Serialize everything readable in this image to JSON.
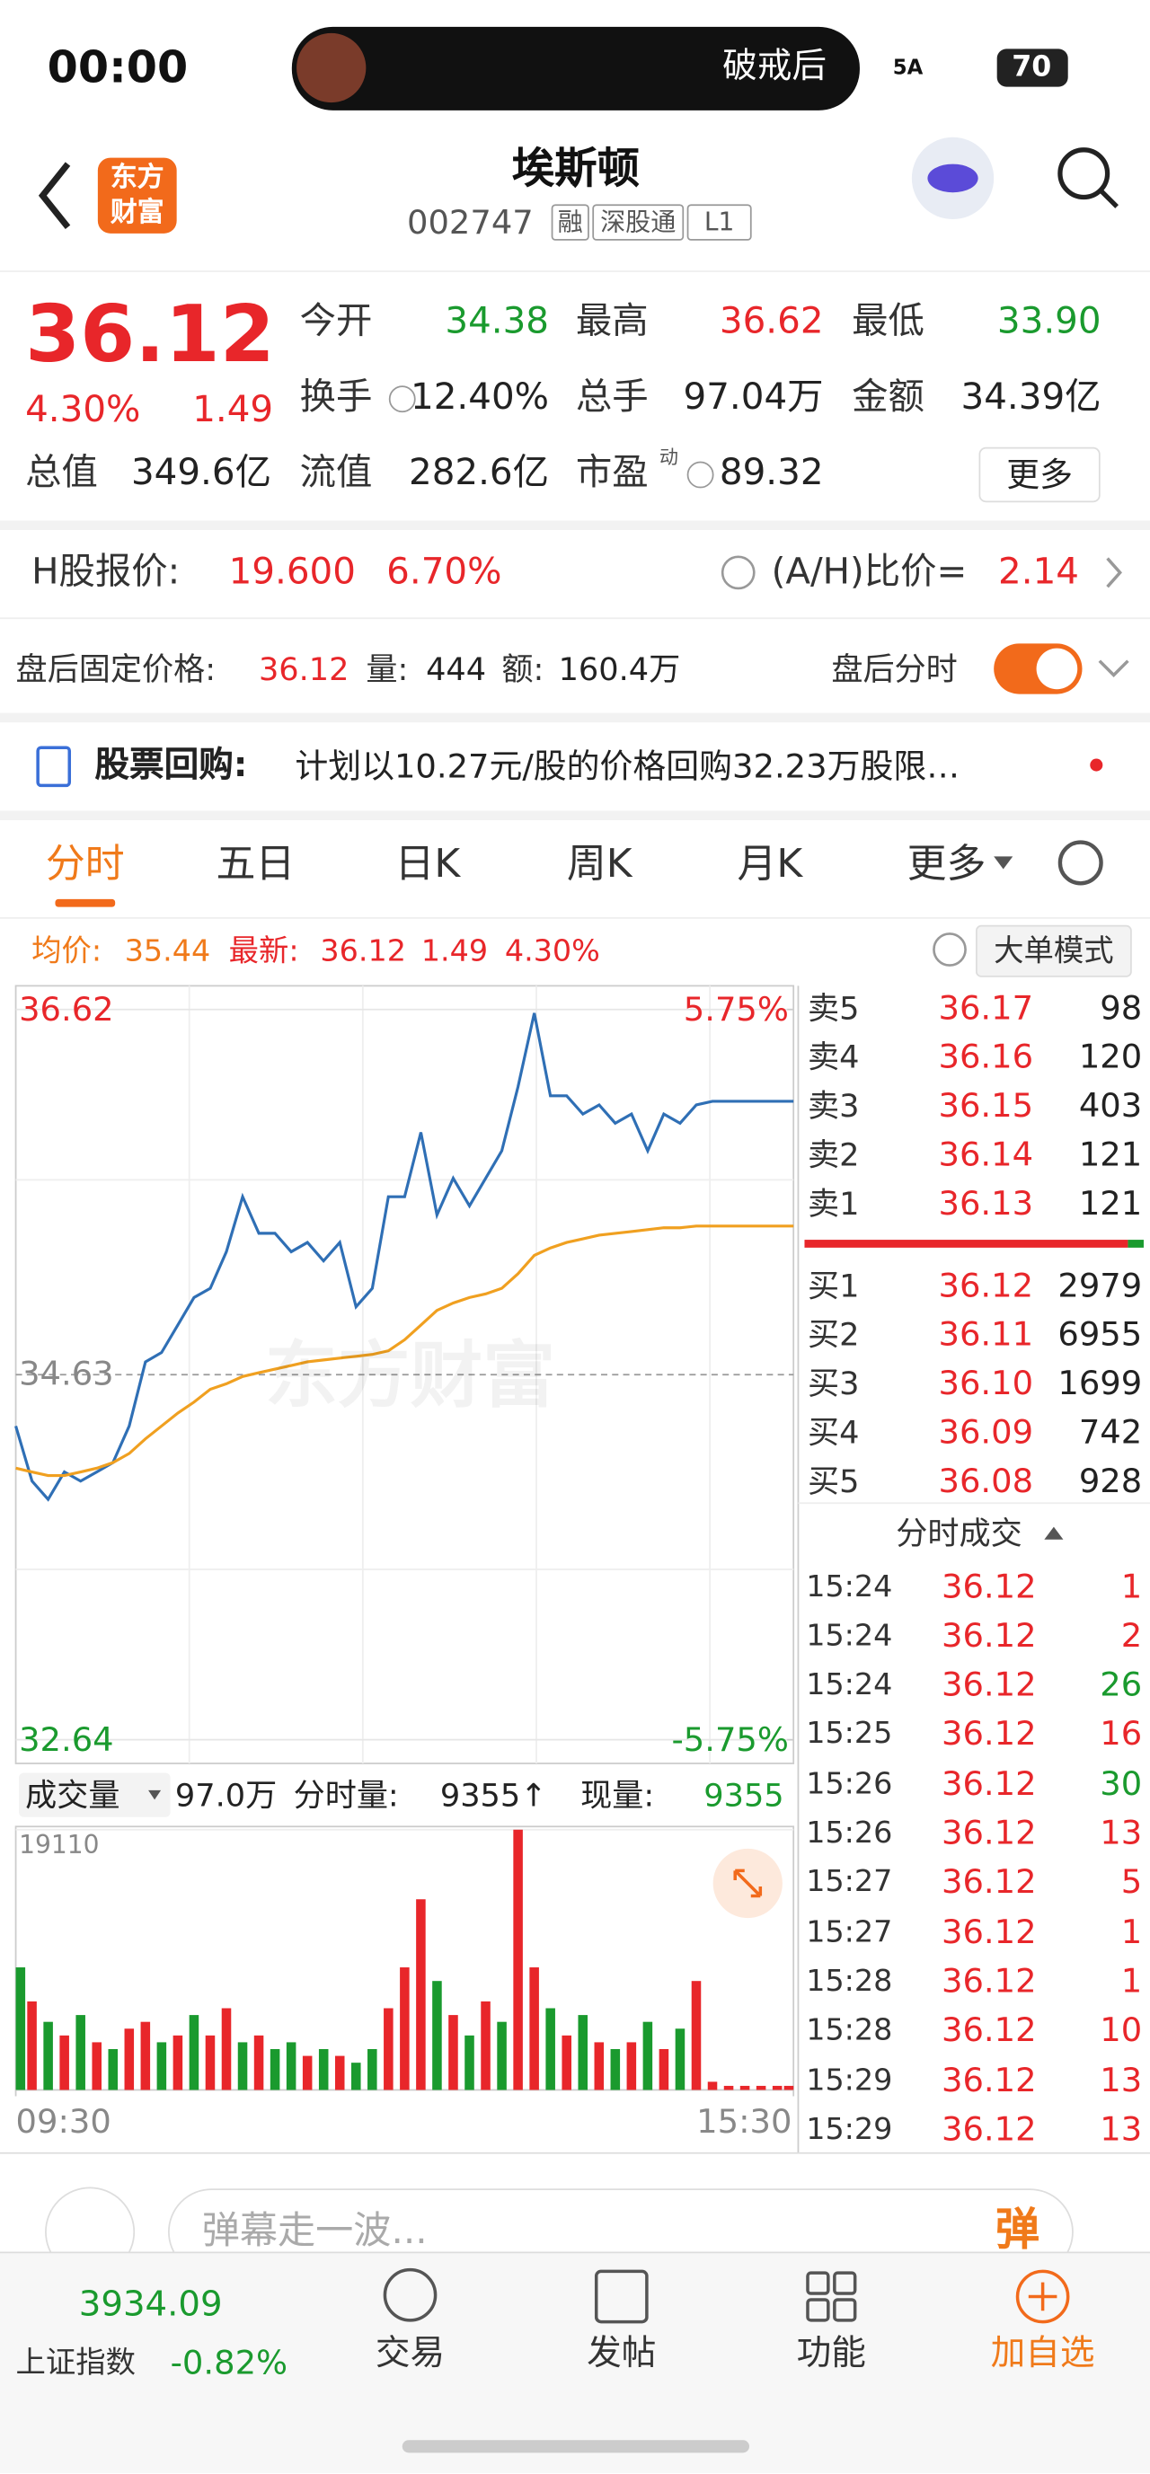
{
  "status_bar": {
    "time": "00:00",
    "notice": "破戒后",
    "network": "5A",
    "battery": "70"
  },
  "header": {
    "logo": [
      "东方",
      "财富"
    ],
    "title": "埃斯顿",
    "code": "002747",
    "tags": [
      "融",
      "深股通",
      "L1"
    ]
  },
  "quote": {
    "price": "36.12",
    "change_pct": "4.30%",
    "change": "1.49",
    "fields": [
      {
        "label": "今开",
        "value": "34.38"
      },
      {
        "label": "最高",
        "value": "36.62"
      },
      {
        "label": "最低",
        "value": "33.90"
      },
      {
        "label": "换手",
        "value": "12.40%"
      },
      {
        "label": "总手",
        "value": "97.04万"
      },
      {
        "label": "金额",
        "value": "34.39亿"
      },
      {
        "label": "总值",
        "value": "349.6亿"
      },
      {
        "label": "流值",
        "value": "282.6亿"
      },
      {
        "label": "市盈",
        "value": "89.32"
      }
    ],
    "pe_note": "动",
    "more": "更多"
  },
  "h_share": {
    "label": "H股报价:",
    "price": "19.600",
    "change_pct": "6.70%",
    "ratio_label": "(A/H)比价=",
    "ratio": "2.14"
  },
  "after_hours": {
    "label": "盘后固定价格:",
    "price": "36.12",
    "vol_label": "量:",
    "vol": "444",
    "amt_label": "额:",
    "amt": "160.4万",
    "toggle_label": "盘后分时"
  },
  "notice": {
    "label": "股票回购:",
    "text": "计划以10.27元/股的价格回购32.23万股限…"
  },
  "tabs": [
    "分时",
    "五日",
    "日K",
    "周K",
    "月K",
    "更多"
  ],
  "info": {
    "avg_label": "均价:",
    "avg": "35.44",
    "last_label": "最新:",
    "last": "36.12",
    "change": "1.49",
    "change_pct": "4.30%",
    "mode": "大单模式"
  },
  "watermark": "东方财富",
  "chart_data": [
    {
      "type": "line",
      "x": [
        0,
        5,
        10,
        15,
        20,
        25,
        30,
        35,
        40,
        45,
        50,
        55,
        60,
        65,
        70,
        75,
        80,
        85,
        90,
        95,
        100,
        105,
        110,
        115,
        120,
        125,
        130,
        135,
        140,
        145,
        150,
        155,
        160,
        165,
        170,
        175,
        180,
        185,
        190,
        195,
        200,
        205,
        210,
        215,
        220,
        225,
        230,
        235,
        240
      ],
      "xlim": [
        0,
        240
      ],
      "ylim": [
        32.64,
        36.62
      ],
      "yticks": [
        36.62,
        34.63,
        32.64
      ],
      "y2lim": [
        -5.75,
        5.75
      ],
      "y2ticks": [
        {
          "value": 5.75,
          "label": "5.75%"
        },
        {
          "value": -5.75,
          "label": "-5.75%"
        }
      ],
      "series": [
        {
          "color": "#2f6fb5",
          "values": [
            34.35,
            34.05,
            33.95,
            34.1,
            34.05,
            34.1,
            34.15,
            34.35,
            34.7,
            34.75,
            34.9,
            35.05,
            35.1,
            35.3,
            35.6,
            35.4,
            35.4,
            35.3,
            35.35,
            35.25,
            35.35,
            35.0,
            35.1,
            35.6,
            35.6,
            35.95,
            35.5,
            35.7,
            35.55,
            35.7,
            35.85,
            36.2,
            36.6,
            36.15,
            36.15,
            36.05,
            36.1,
            36.0,
            36.05,
            35.85,
            36.05,
            36.0,
            36.1,
            36.12,
            36.12,
            36.12,
            36.12,
            36.12,
            36.12
          ]
        },
        {
          "color": "#f0a020",
          "values": [
            34.12,
            34.1,
            34.08,
            34.08,
            34.1,
            34.12,
            34.15,
            34.2,
            34.28,
            34.35,
            34.42,
            34.48,
            34.55,
            34.58,
            34.62,
            34.64,
            34.66,
            34.68,
            34.7,
            34.71,
            34.72,
            34.73,
            34.74,
            34.76,
            34.82,
            34.9,
            34.98,
            35.02,
            35.05,
            35.07,
            35.1,
            35.18,
            35.28,
            35.32,
            35.35,
            35.37,
            35.39,
            35.4,
            35.41,
            35.42,
            35.43,
            35.43,
            35.44,
            35.44,
            35.44,
            35.44,
            35.44,
            35.44,
            35.44
          ]
        }
      ]
    },
    {
      "type": "bar",
      "x": [
        0,
        5,
        10,
        15,
        20,
        25,
        30,
        35,
        40,
        45,
        50,
        55,
        60,
        65,
        70,
        75,
        80,
        85,
        90,
        95,
        100,
        105,
        110,
        115,
        120,
        125,
        130,
        135,
        140,
        145,
        150,
        155,
        160,
        165,
        170,
        175,
        180,
        185,
        190,
        195,
        200,
        205,
        210,
        215,
        220,
        225,
        230,
        235,
        240
      ],
      "xlim": [
        0,
        240
      ],
      "ylim": [
        0,
        19110
      ],
      "yticks": [
        19110
      ],
      "xticks": [
        {
          "value": 0,
          "label": "09:30"
        },
        {
          "value": 240,
          "label": "15:30"
        }
      ],
      "values": [
        9000,
        6500,
        5000,
        4000,
        5500,
        3500,
        3000,
        4500,
        5000,
        3500,
        4000,
        5500,
        4000,
        6000,
        3500,
        4000,
        3000,
        3500,
        2500,
        3000,
        2500,
        2000,
        3000,
        6000,
        9000,
        14000,
        8000,
        5500,
        4000,
        6500,
        5000,
        19110,
        9000,
        6000,
        4000,
        5500,
        3500,
        3000,
        3500,
        5000,
        3000,
        4500,
        8000,
        600,
        300,
        300,
        300,
        300,
        300
      ],
      "colors": [
        "#1a9a2e",
        "#e8262a",
        "#1a9a2e",
        "#e8262a",
        "#1a9a2e",
        "#e8262a",
        "#1a9a2e",
        "#e8262a",
        "#e8262a",
        "#1a9a2e",
        "#e8262a",
        "#1a9a2e",
        "#e8262a",
        "#e8262a",
        "#1a9a2e",
        "#e8262a",
        "#1a9a2e",
        "#1a9a2e",
        "#e8262a",
        "#1a9a2e",
        "#e8262a",
        "#1a9a2e",
        "#1a9a2e",
        "#e8262a",
        "#e8262a",
        "#e8262a",
        "#1a9a2e",
        "#e8262a",
        "#1a9a2e",
        "#e8262a",
        "#1a9a2e",
        "#e8262a",
        "#e8262a",
        "#1a9a2e",
        "#e8262a",
        "#1a9a2e",
        "#e8262a",
        "#1a9a2e",
        "#e8262a",
        "#1a9a2e",
        "#e8262a",
        "#1a9a2e",
        "#e8262a",
        "#e8262a",
        "#e8262a",
        "#e8262a",
        "#e8262a",
        "#e8262a",
        "#e8262a"
      ]
    }
  ],
  "volume_bar": {
    "label": "成交量",
    "total": "97.0万",
    "minute_label": "分时量:",
    "minute": "9355↑",
    "now_label": "现量:",
    "now": "9355"
  },
  "order_book": {
    "asks": [
      [
        "卖5",
        "36.17",
        "98"
      ],
      [
        "卖4",
        "36.16",
        "120"
      ],
      [
        "卖3",
        "36.15",
        "403"
      ],
      [
        "卖2",
        "36.14",
        "121"
      ],
      [
        "卖1",
        "36.13",
        "121"
      ]
    ],
    "bids": [
      [
        "买1",
        "36.12",
        "2979"
      ],
      [
        "买2",
        "36.11",
        "6955"
      ],
      [
        "买3",
        "36.10",
        "1699"
      ],
      [
        "买4",
        "36.09",
        "742"
      ],
      [
        "买5",
        "36.08",
        "928"
      ]
    ]
  },
  "trades": {
    "title": "分时成交",
    "rows": [
      {
        "time": "15:24",
        "price": "36.12",
        "volume": "1",
        "color": "#e8262a"
      },
      {
        "time": "15:24",
        "price": "36.12",
        "volume": "2",
        "color": "#e8262a"
      },
      {
        "time": "15:24",
        "price": "36.12",
        "volume": "26",
        "color": "#1a9a2e"
      },
      {
        "time": "15:25",
        "price": "36.12",
        "volume": "16",
        "color": "#e8262a"
      },
      {
        "time": "15:26",
        "price": "36.12",
        "volume": "30",
        "color": "#1a9a2e"
      },
      {
        "time": "15:26",
        "price": "36.12",
        "volume": "13",
        "color": "#e8262a"
      },
      {
        "time": "15:27",
        "price": "36.12",
        "volume": "5",
        "color": "#e8262a"
      },
      {
        "time": "15:27",
        "price": "36.12",
        "volume": "1",
        "color": "#e8262a"
      },
      {
        "time": "15:28",
        "price": "36.12",
        "volume": "1",
        "color": "#e8262a"
      },
      {
        "time": "15:28",
        "price": "36.12",
        "volume": "10",
        "color": "#e8262a"
      },
      {
        "time": "15:29",
        "price": "36.12",
        "volume": "13",
        "color": "#e8262a"
      },
      {
        "time": "15:29",
        "price": "36.12",
        "volume": "13",
        "color": "#e8262a"
      }
    ]
  },
  "comment": {
    "placeholder": "弹幕走一波...",
    "button": "弹"
  },
  "bottom_nav": {
    "index_value": "3934.09",
    "index_name": "上证指数",
    "index_change": "-0.82%",
    "items": [
      "交易",
      "发帖",
      "功能",
      "加自选"
    ]
  }
}
